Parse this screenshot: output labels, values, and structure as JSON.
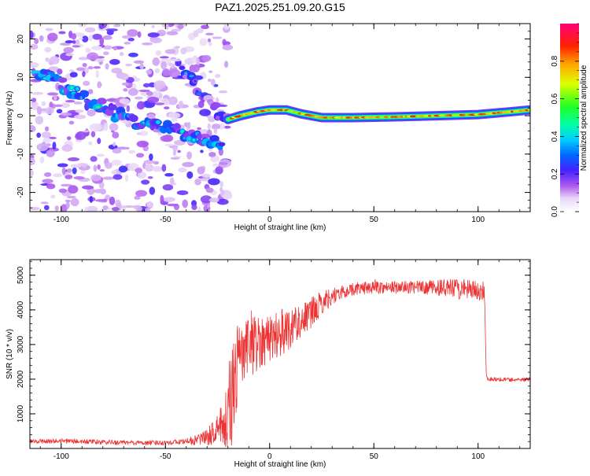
{
  "title": "PAZ1.2025.251.09.20.G15",
  "colors": {
    "snr_line": "#ee3333",
    "axis": "#000000",
    "background": "#ffffff"
  },
  "chart_data": [
    {
      "type": "heatmap",
      "name": "spectrogram",
      "xlabel": "Height of straight line (km)",
      "ylabel": "Frequency (Hz)",
      "xlim": [
        -115,
        125
      ],
      "ylim": [
        -25,
        24
      ],
      "x_ticks": [
        -100,
        -50,
        0,
        50,
        100
      ],
      "x_tick_labels": [
        "-100",
        "-50",
        "0",
        "50",
        "100"
      ],
      "y_ticks": [
        -20,
        -10,
        0,
        10,
        20
      ],
      "y_tick_labels": [
        "-20",
        "-10",
        "0",
        "10",
        "20"
      ],
      "colorbar": {
        "label": "Normalized spectral amplitude",
        "range": [
          0,
          1
        ],
        "ticks": [
          0,
          0.2,
          0.4,
          0.6,
          0.8
        ],
        "tick_labels": [
          "0.0",
          "0.2",
          "0.4",
          "0.6",
          "0.8"
        ],
        "colormap": "rainbow (white-violet-blue-cyan-green-yellow-red-magenta)"
      },
      "features": [
        {
          "description": "noise blobs",
          "x_range": [
            -115,
            -20
          ],
          "freq_range": [
            -25,
            24
          ],
          "amplitude": 0.1
        },
        {
          "description": "ridge",
          "points": [
            [
              -112,
              12
            ],
            [
              -97,
              7
            ],
            [
              -90,
              5
            ],
            [
              -82,
              3
            ],
            [
              -72,
              0
            ],
            [
              -60,
              -2
            ],
            [
              -50,
              -3
            ],
            [
              -42,
              -5
            ],
            [
              -35,
              -6
            ],
            [
              -28,
              -7
            ],
            [
              -22,
              -8
            ]
          ],
          "amplitude": 0.28
        },
        {
          "description": "ridge",
          "points": [
            [
              -42,
              12
            ],
            [
              -36,
              8
            ],
            [
              -30,
              4
            ],
            [
              -25,
              1
            ],
            [
              -20,
              -1
            ]
          ],
          "amplitude": 0.18
        },
        {
          "description": "main line",
          "points": [
            [
              -20,
              -1
            ],
            [
              -14,
              0
            ],
            [
              -6,
              1
            ],
            [
              0,
              1.5
            ],
            [
              8,
              1.5
            ],
            [
              15,
              0.5
            ],
            [
              25,
              -0.5
            ],
            [
              40,
              -0.5
            ],
            [
              60,
              -0.3
            ],
            [
              80,
              0
            ],
            [
              100,
              0.3
            ],
            [
              115,
              1
            ],
            [
              125,
              1.5
            ]
          ],
          "amplitude": 0.85
        }
      ]
    },
    {
      "type": "line",
      "name": "snr",
      "xlabel": "Height of straight line (km)",
      "ylabel": "SNR (10 * v/v)",
      "xlim": [
        -115,
        125
      ],
      "ylim": [
        0,
        5450
      ],
      "x_ticks": [
        -100,
        -50,
        0,
        50,
        100
      ],
      "x_tick_labels": [
        "-100",
        "-50",
        "0",
        "50",
        "100"
      ],
      "y_ticks": [
        1000,
        2000,
        3000,
        4000,
        5000
      ],
      "y_tick_labels": [
        "1000",
        "2000",
        "3000",
        "4000",
        "5000"
      ],
      "envelope": {
        "x": [
          -115,
          -100,
          -80,
          -60,
          -50,
          -40,
          -30,
          -25,
          -22,
          -20,
          -18,
          -15,
          -12,
          -10,
          -5,
          0,
          5,
          10,
          15,
          20,
          25,
          30,
          35,
          40,
          50,
          60,
          70,
          80,
          90,
          100,
          103,
          104,
          105,
          110,
          120,
          125
        ],
        "y": [
          200,
          220,
          180,
          160,
          170,
          200,
          300,
          600,
          700,
          800,
          1500,
          2600,
          2700,
          2900,
          3100,
          3200,
          3300,
          3500,
          3700,
          3900,
          4200,
          4400,
          4500,
          4600,
          4650,
          4650,
          4650,
          4650,
          4600,
          4550,
          4550,
          2050,
          2000,
          2000,
          1980,
          2000
        ],
        "noise_amplitude": [
          60,
          70,
          70,
          70,
          70,
          80,
          250,
          400,
          700,
          1400,
          1700,
          1100,
          1000,
          900,
          800,
          700,
          700,
          600,
          500,
          450,
          350,
          250,
          200,
          180,
          180,
          180,
          180,
          220,
          300,
          300,
          250,
          60,
          60,
          60,
          60,
          60
        ]
      }
    }
  ]
}
